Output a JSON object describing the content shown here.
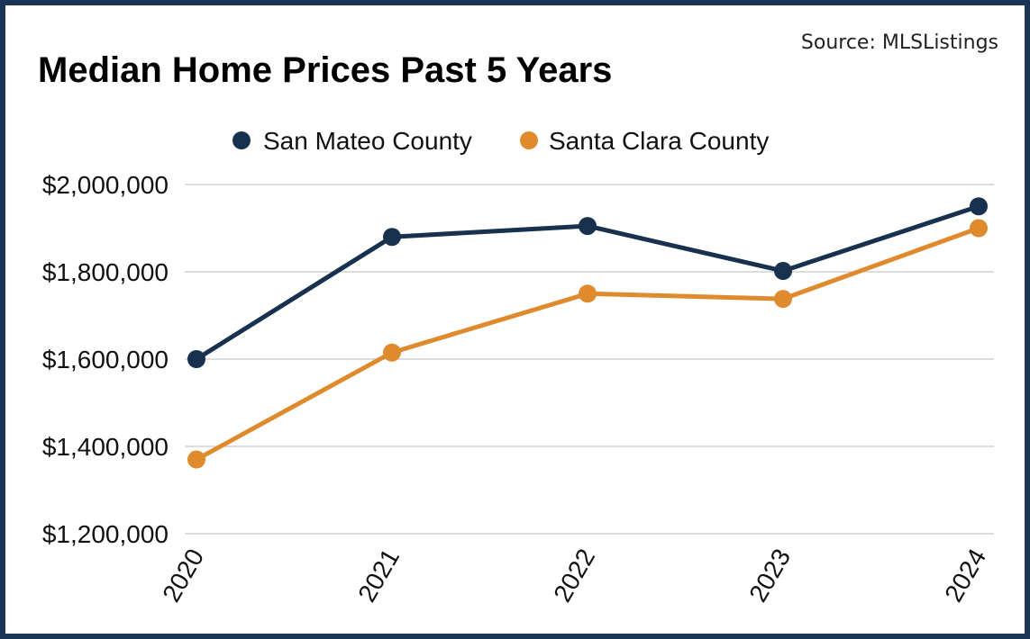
{
  "chart_data": {
    "type": "line",
    "title": "Median Home Prices Past 5 Years",
    "source": "Source: MLSListings",
    "x": [
      "2020",
      "2021",
      "2022",
      "2023",
      "2024"
    ],
    "ylim": [
      1200000,
      2000000
    ],
    "yticks": [
      2000000,
      1800000,
      1600000,
      1400000,
      1200000
    ],
    "ytick_labels": [
      "$2,000,000",
      "$1,800,000",
      "$1,600,000",
      "$1,400,000",
      "$1,200,000"
    ],
    "grid": true,
    "legend_position": "top-center",
    "series": [
      {
        "name": "San Mateo County",
        "color": "#17314f",
        "values": [
          1600000,
          1880000,
          1905000,
          1802000,
          1950000
        ]
      },
      {
        "name": "Santa Clara County",
        "color": "#e08a2e",
        "values": [
          1370000,
          1615000,
          1750000,
          1738000,
          1900000
        ]
      }
    ]
  }
}
